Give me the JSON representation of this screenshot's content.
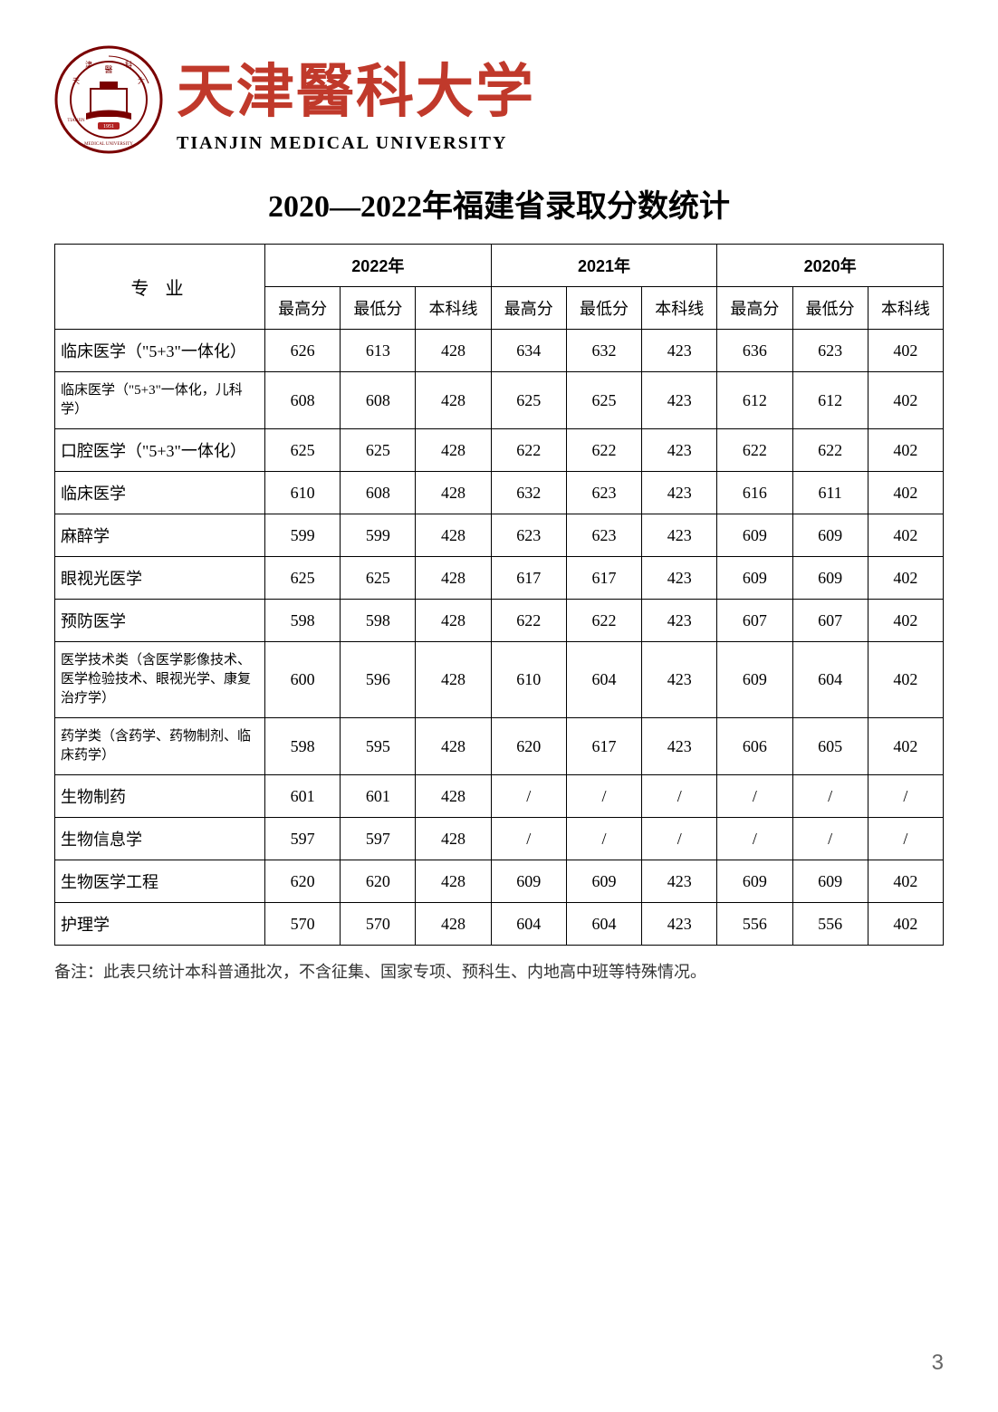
{
  "logo": {
    "cn_name": "天津醫科大学",
    "en_name": "TIANJIN MEDICAL UNIVERSITY",
    "emblem_colors": {
      "ring": "#7a0000",
      "inner": "#ffffff",
      "accent": "#c0392b"
    }
  },
  "title": "2020—2022年福建省录取分数统计",
  "table": {
    "major_header": "专业",
    "years": [
      "2022年",
      "2021年",
      "2020年"
    ],
    "sub_headers": [
      "最高分",
      "最低分",
      "本科线"
    ],
    "rows": [
      {
        "major": "临床医学（\"5+3\"一体化）",
        "small": false,
        "cells": [
          "626",
          "613",
          "428",
          "634",
          "632",
          "423",
          "636",
          "623",
          "402"
        ]
      },
      {
        "major": "临床医学（\"5+3\"一体化，儿科学）",
        "small": true,
        "cells": [
          "608",
          "608",
          "428",
          "625",
          "625",
          "423",
          "612",
          "612",
          "402"
        ]
      },
      {
        "major": "口腔医学（\"5+3\"一体化）",
        "small": false,
        "cells": [
          "625",
          "625",
          "428",
          "622",
          "622",
          "423",
          "622",
          "622",
          "402"
        ]
      },
      {
        "major": "临床医学",
        "small": false,
        "cells": [
          "610",
          "608",
          "428",
          "632",
          "623",
          "423",
          "616",
          "611",
          "402"
        ]
      },
      {
        "major": "麻醉学",
        "small": false,
        "cells": [
          "599",
          "599",
          "428",
          "623",
          "623",
          "423",
          "609",
          "609",
          "402"
        ]
      },
      {
        "major": "眼视光医学",
        "small": false,
        "cells": [
          "625",
          "625",
          "428",
          "617",
          "617",
          "423",
          "609",
          "609",
          "402"
        ]
      },
      {
        "major": "预防医学",
        "small": false,
        "cells": [
          "598",
          "598",
          "428",
          "622",
          "622",
          "423",
          "607",
          "607",
          "402"
        ]
      },
      {
        "major": "医学技术类（含医学影像技术、医学检验技术、眼视光学、康复治疗学）",
        "small": true,
        "cells": [
          "600",
          "596",
          "428",
          "610",
          "604",
          "423",
          "609",
          "604",
          "402"
        ]
      },
      {
        "major": "药学类（含药学、药物制剂、临床药学）",
        "small": true,
        "cells": [
          "598",
          "595",
          "428",
          "620",
          "617",
          "423",
          "606",
          "605",
          "402"
        ]
      },
      {
        "major": "生物制药",
        "small": false,
        "cells": [
          "601",
          "601",
          "428",
          "/",
          "/",
          "/",
          "/",
          "/",
          "/"
        ]
      },
      {
        "major": "生物信息学",
        "small": false,
        "cells": [
          "597",
          "597",
          "428",
          "/",
          "/",
          "/",
          "/",
          "/",
          "/"
        ]
      },
      {
        "major": "生物医学工程",
        "small": false,
        "cells": [
          "620",
          "620",
          "428",
          "609",
          "609",
          "423",
          "609",
          "609",
          "402"
        ]
      },
      {
        "major": "护理学",
        "small": false,
        "cells": [
          "570",
          "570",
          "428",
          "604",
          "604",
          "423",
          "556",
          "556",
          "402"
        ]
      }
    ]
  },
  "footnote": "备注：此表只统计本科普通批次，不含征集、国家专项、预科生、内地高中班等特殊情况。",
  "page_number": "3"
}
